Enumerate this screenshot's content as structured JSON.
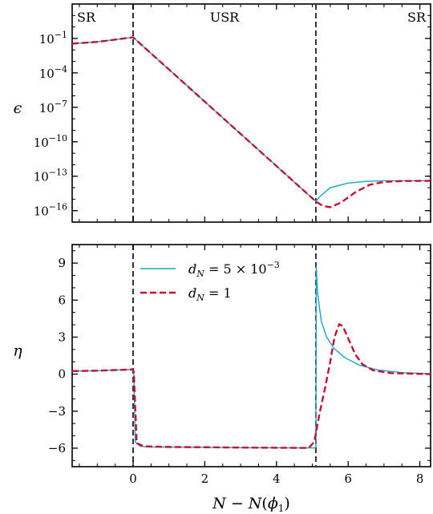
{
  "chart_data": [
    {
      "type": "line",
      "panel": "top",
      "ylabel": "ϵ",
      "yscale": "log",
      "xlim": [
        -1.7,
        8.3
      ],
      "ylim_exp": [
        -17,
        2
      ],
      "yticks": [
        {
          "exp": -1,
          "base": "10",
          "sup": "−1"
        },
        {
          "exp": -4,
          "base": "10",
          "sup": "−4"
        },
        {
          "exp": -7,
          "base": "10",
          "sup": "−7"
        },
        {
          "exp": -10,
          "base": "10",
          "sup": "−10"
        },
        {
          "exp": -13,
          "base": "10",
          "sup": "−13"
        },
        {
          "exp": -16,
          "base": "10",
          "sup": "−16"
        }
      ],
      "vlines": [
        0,
        5.1
      ],
      "region_labels": [
        {
          "text": "SR",
          "anchor": "left"
        },
        {
          "text": "USR",
          "anchor": "center"
        },
        {
          "text": "SR",
          "anchor": "right"
        }
      ],
      "series": [
        {
          "color": "#1ba3cf",
          "dash": "solid",
          "log10_values": [
            [
              -1.7,
              -1.45
            ],
            [
              -1.0,
              -1.3
            ],
            [
              0,
              -0.9
            ],
            [
              5.1,
              -15.2
            ],
            [
              5.2,
              -14.8
            ],
            [
              5.5,
              -14.0
            ],
            [
              6.0,
              -13.6
            ],
            [
              6.5,
              -13.45
            ],
            [
              7.0,
              -13.4
            ],
            [
              8.3,
              -13.4
            ]
          ]
        },
        {
          "color": "#c8102e",
          "dash": "dashed",
          "log10_values": [
            [
              -1.7,
              -1.45
            ],
            [
              -1.0,
              -1.3
            ],
            [
              0,
              -0.9
            ],
            [
              5.1,
              -15.2
            ],
            [
              5.3,
              -15.6
            ],
            [
              5.5,
              -15.7
            ],
            [
              5.8,
              -15.3
            ],
            [
              6.2,
              -14.4
            ],
            [
              6.6,
              -13.75
            ],
            [
              7.0,
              -13.5
            ],
            [
              7.5,
              -13.42
            ],
            [
              8.3,
              -13.4
            ]
          ]
        }
      ]
    },
    {
      "type": "line",
      "panel": "bottom",
      "xlabel": "N − N(ϕ1)",
      "ylabel": "η",
      "xlim": [
        -1.7,
        8.3
      ],
      "ylim": [
        -7.5,
        10.5
      ],
      "xticks": [
        0,
        2,
        4,
        6,
        8
      ],
      "yticks": [
        9,
        6,
        3,
        0,
        -3,
        -6
      ],
      "ytick_labels": [
        "9",
        "6",
        "3",
        "0",
        "−3",
        "−6"
      ],
      "xtick_labels": [
        "0",
        "2",
        "4",
        "6",
        "8"
      ],
      "vlines": [
        0,
        5.1
      ],
      "legend": {
        "placement": "top-center"
      },
      "series": [
        {
          "name": "dN = 5 × 10−3",
          "color": "#1ba3cf",
          "dash": "solid",
          "points": [
            [
              -1.7,
              0.25
            ],
            [
              -1.0,
              0.28
            ],
            [
              -0.02,
              0.38
            ],
            [
              0.02,
              0.2
            ],
            [
              0.06,
              -5.5
            ],
            [
              0.2,
              -5.85
            ],
            [
              0.5,
              -5.9
            ],
            [
              3.0,
              -5.95
            ],
            [
              5.08,
              -5.98
            ],
            [
              5.1,
              -5.9
            ],
            [
              5.11,
              8.7
            ],
            [
              5.15,
              6.5
            ],
            [
              5.25,
              4.3
            ],
            [
              5.4,
              3.0
            ],
            [
              5.6,
              2.1
            ],
            [
              5.9,
              1.35
            ],
            [
              6.3,
              0.75
            ],
            [
              6.8,
              0.35
            ],
            [
              7.5,
              0.12
            ],
            [
              8.3,
              0.03
            ]
          ]
        },
        {
          "name": "dN = 1",
          "color": "#c8102e",
          "dash": "dashed",
          "points": [
            [
              -1.7,
              0.25
            ],
            [
              -1.0,
              0.28
            ],
            [
              -0.02,
              0.38
            ],
            [
              0.02,
              0.2
            ],
            [
              0.1,
              -5.6
            ],
            [
              0.3,
              -5.85
            ],
            [
              1.0,
              -5.9
            ],
            [
              3.0,
              -5.95
            ],
            [
              4.9,
              -5.98
            ],
            [
              5.05,
              -5.5
            ],
            [
              5.1,
              -4.8
            ],
            [
              5.2,
              -3.2
            ],
            [
              5.35,
              -1.2
            ],
            [
              5.5,
              1.0
            ],
            [
              5.62,
              3.0
            ],
            [
              5.75,
              4.05
            ],
            [
              5.85,
              3.9
            ],
            [
              6.0,
              2.9
            ],
            [
              6.2,
              1.6
            ],
            [
              6.4,
              0.8
            ],
            [
              6.7,
              0.3
            ],
            [
              7.2,
              0.08
            ],
            [
              8.3,
              0.0
            ]
          ]
        }
      ]
    }
  ],
  "icons": [
    "figure"
  ]
}
